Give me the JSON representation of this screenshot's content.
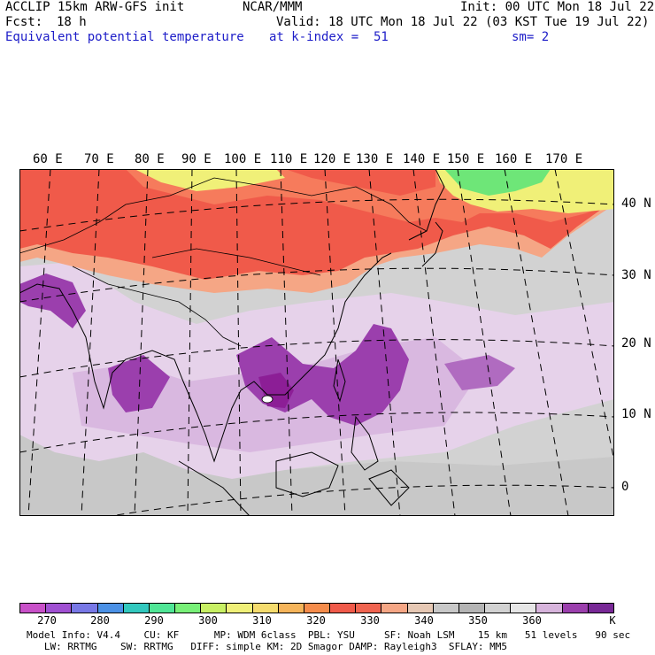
{
  "header": {
    "model": "ACCLIP 15km ARW-GFS init",
    "org": "NCAR/MMM",
    "init": "Init: 00 UTC Mon 18 Jul 22",
    "fcst_label": "Fcst:",
    "fcst_value": "18 h",
    "valid": "Valid: 18 UTC Mon 18 Jul 22 (03 KST Tue 19 Jul 22)",
    "field": "Equivalent potential temperature",
    "level": "at k-index =  51",
    "smooth": "sm= 2"
  },
  "map": {
    "lon_labels": [
      "60 E",
      "70 E",
      "80 E",
      "90 E",
      "100 E",
      "110 E",
      "120 E",
      "130 E",
      "140 E",
      "150 E",
      "160 E",
      "170 E"
    ],
    "lat_labels": [
      "40 N",
      "30 N",
      "20 N",
      "10 N",
      "0"
    ],
    "colors": {
      "purple_dark": "#8c1e96",
      "purple": "#9b3fad",
      "lavender": "#d9b8e0",
      "light_lavender": "#e6d2ea",
      "gray": "#c8c8c8",
      "light_gray": "#dcdcdc",
      "red": "#f05a4a",
      "orange_red": "#f67b5c",
      "peach": "#f5a685",
      "yellow": "#f0f078",
      "green": "#6ee678"
    }
  },
  "colorbar": {
    "colors": [
      "#c850c8",
      "#a050d2",
      "#7878e6",
      "#4b91e6",
      "#32c8be",
      "#50e696",
      "#78f078",
      "#c8f064",
      "#f0f078",
      "#f5dc6e",
      "#f5b45a",
      "#f58c4b",
      "#f05a4a",
      "#f06450",
      "#f5a685",
      "#e6c8b4",
      "#c8c8c8",
      "#b4b4b4",
      "#d2d2d2",
      "#e6e6e6",
      "#d7b4dc",
      "#9b3fad",
      "#782896"
    ],
    "labels": [
      "270",
      "280",
      "290",
      "300",
      "310",
      "320",
      "330",
      "340",
      "350",
      "360",
      "K"
    ]
  },
  "footer": {
    "line1": "Model Info: V4.4    CU: KF      MP: WDM 6class  PBL: YSU     SF: Noah LSM    15 km   51 levels   90 sec",
    "line2": "   LW: RRTMG    SW: RRTMG   DIFF: simple KM: 2D Smagor DAMP: Rayleigh3  SFLAY: MM5"
  }
}
